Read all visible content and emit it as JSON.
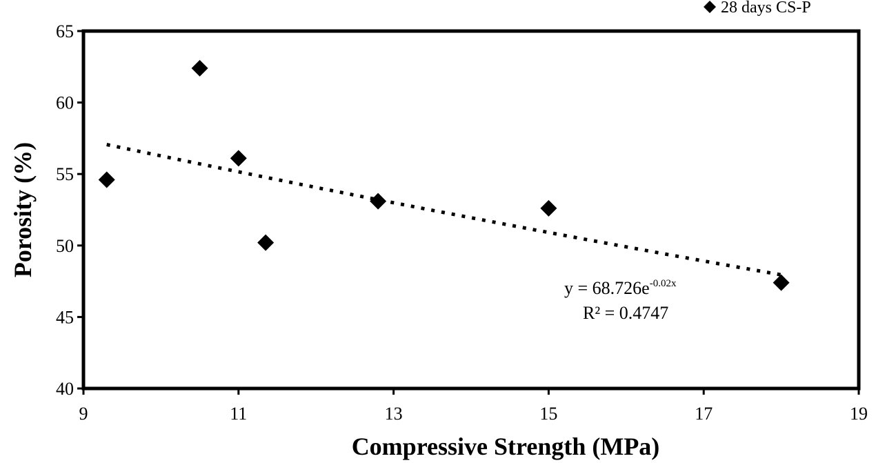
{
  "chart_data": {
    "type": "scatter",
    "xlabel": "Compressive Strength (MPa)",
    "ylabel": "Porosity (%)",
    "xlim": [
      9,
      19
    ],
    "ylim": [
      40,
      65
    ],
    "x_ticks": [
      "9",
      "11",
      "13",
      "15",
      "17",
      "19"
    ],
    "y_ticks": [
      "40",
      "45",
      "50",
      "55",
      "60",
      "65"
    ],
    "grid": false,
    "legend_position": "top-right",
    "series": [
      {
        "name": "28 days CS-P",
        "marker": "diamond",
        "color": "#000000",
        "x": [
          9.3,
          10.5,
          11.0,
          11.35,
          12.8,
          15.0,
          18.0
        ],
        "y": [
          54.6,
          62.4,
          56.1,
          50.2,
          53.1,
          52.6,
          47.4
        ]
      }
    ],
    "trendline": {
      "type": "exponential",
      "style": "dotted",
      "a": 68.726,
      "b": -0.02,
      "x_range": [
        9.3,
        18.0
      ],
      "equation_base": "y = 68.726e",
      "equation_exponent": "-0.02x",
      "r_squared_label": "R² = 0.4747"
    }
  }
}
